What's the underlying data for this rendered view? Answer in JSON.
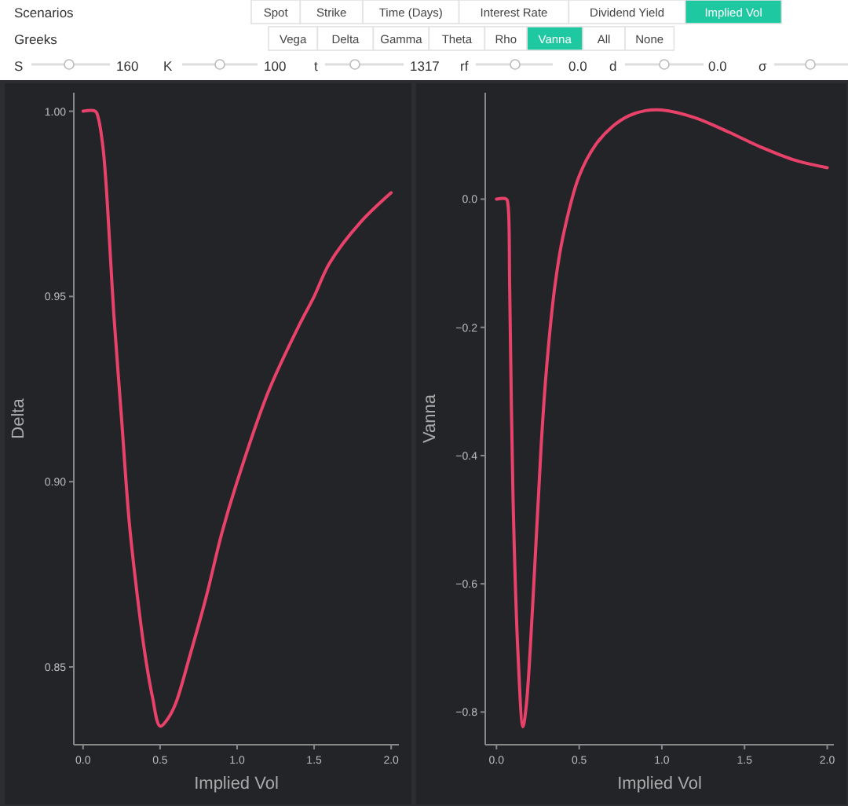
{
  "chart_data": [
    {
      "type": "other",
      "annotations": [
        "Scenarios",
        "Spot",
        "Strike",
        "Time (Days)",
        "Interest Rate",
        "Dividend Yield",
        "Implied Vol",
        "Greeks",
        "Vega",
        "Delta",
        "Gamma",
        "Theta",
        "Rho",
        "Vanna",
        "All",
        "None",
        "S",
        "160",
        "K",
        "100",
        "t",
        "1317",
        "rf",
        "0.0",
        "d",
        "0.0",
        "σ"
      ]
    },
    {
      "type": "line",
      "xlabel": "Implied Vol",
      "ylabel": "Delta",
      "xlim": [
        -0.06,
        2.05
      ],
      "ylim": [
        0.829,
        1.005
      ],
      "xticks": [
        {
          "value": 0,
          "label": "0.0"
        },
        {
          "value": 0.5,
          "label": "0.5"
        },
        {
          "value": 1,
          "label": "1.0"
        },
        {
          "value": 1.5,
          "label": "1.5"
        },
        {
          "value": 2,
          "label": "2.0"
        }
      ],
      "yticks": [
        {
          "value": 0.85,
          "label": "0.85"
        },
        {
          "value": 0.9,
          "label": "0.90"
        },
        {
          "value": 0.95,
          "label": "0.95"
        },
        {
          "value": 1,
          "label": "1.00"
        }
      ],
      "grid": false,
      "series": [
        {
          "color": "#e8426a",
          "x": [
            0,
            0.08,
            0.1,
            0.13,
            0.15,
            0.18,
            0.2,
            0.25,
            0.3,
            0.35,
            0.4,
            0.45,
            0.5,
            0.55,
            0.6,
            0.7,
            0.8,
            0.9,
            1.0,
            1.2,
            1.4,
            1.5,
            1.6,
            1.8,
            2.0
          ],
          "values": [
            1.0,
            1.0,
            0.998,
            0.99,
            0.98,
            0.959,
            0.945,
            0.917,
            0.889,
            0.87,
            0.854,
            0.842,
            0.834,
            0.836,
            0.84,
            0.854,
            0.869,
            0.886,
            0.9,
            0.924,
            0.942,
            0.95,
            0.959,
            0.97,
            0.978
          ]
        }
      ]
    },
    {
      "type": "line",
      "xlabel": "Implied Vol",
      "ylabel": "Vanna",
      "xlim": [
        -0.068,
        2.04
      ],
      "ylim": [
        -0.851,
        0.166
      ],
      "xticks": [
        {
          "value": 0,
          "label": "0.0"
        },
        {
          "value": 0.5,
          "label": "0.5"
        },
        {
          "value": 1,
          "label": "1.0"
        },
        {
          "value": 1.5,
          "label": "1.5"
        },
        {
          "value": 2,
          "label": "2.0"
        }
      ],
      "yticks": [
        {
          "value": -0.8,
          "label": "−0.8"
        },
        {
          "value": -0.6,
          "label": "−0.6"
        },
        {
          "value": -0.4,
          "label": "−0.4"
        },
        {
          "value": -0.2,
          "label": "−0.2"
        },
        {
          "value": 0,
          "label": "0.0"
        }
      ],
      "grid": false,
      "series": [
        {
          "color": "#e8426a",
          "x": [
            0,
            0.06,
            0.07,
            0.08,
            0.1,
            0.13,
            0.16,
            0.18,
            0.22,
            0.27,
            0.3,
            0.35,
            0.4,
            0.5,
            0.6,
            0.7,
            0.8,
            0.9,
            1.0,
            1.2,
            1.4,
            1.6,
            1.8,
            2.0
          ],
          "values": [
            0,
            0,
            -0.01,
            -0.142,
            -0.466,
            -0.709,
            -0.823,
            -0.79,
            -0.628,
            -0.385,
            -0.272,
            -0.142,
            -0.061,
            0.036,
            0.085,
            0.113,
            0.13,
            0.138,
            0.139,
            0.127,
            0.105,
            0.081,
            0.061,
            0.049
          ]
        }
      ]
    }
  ]
}
